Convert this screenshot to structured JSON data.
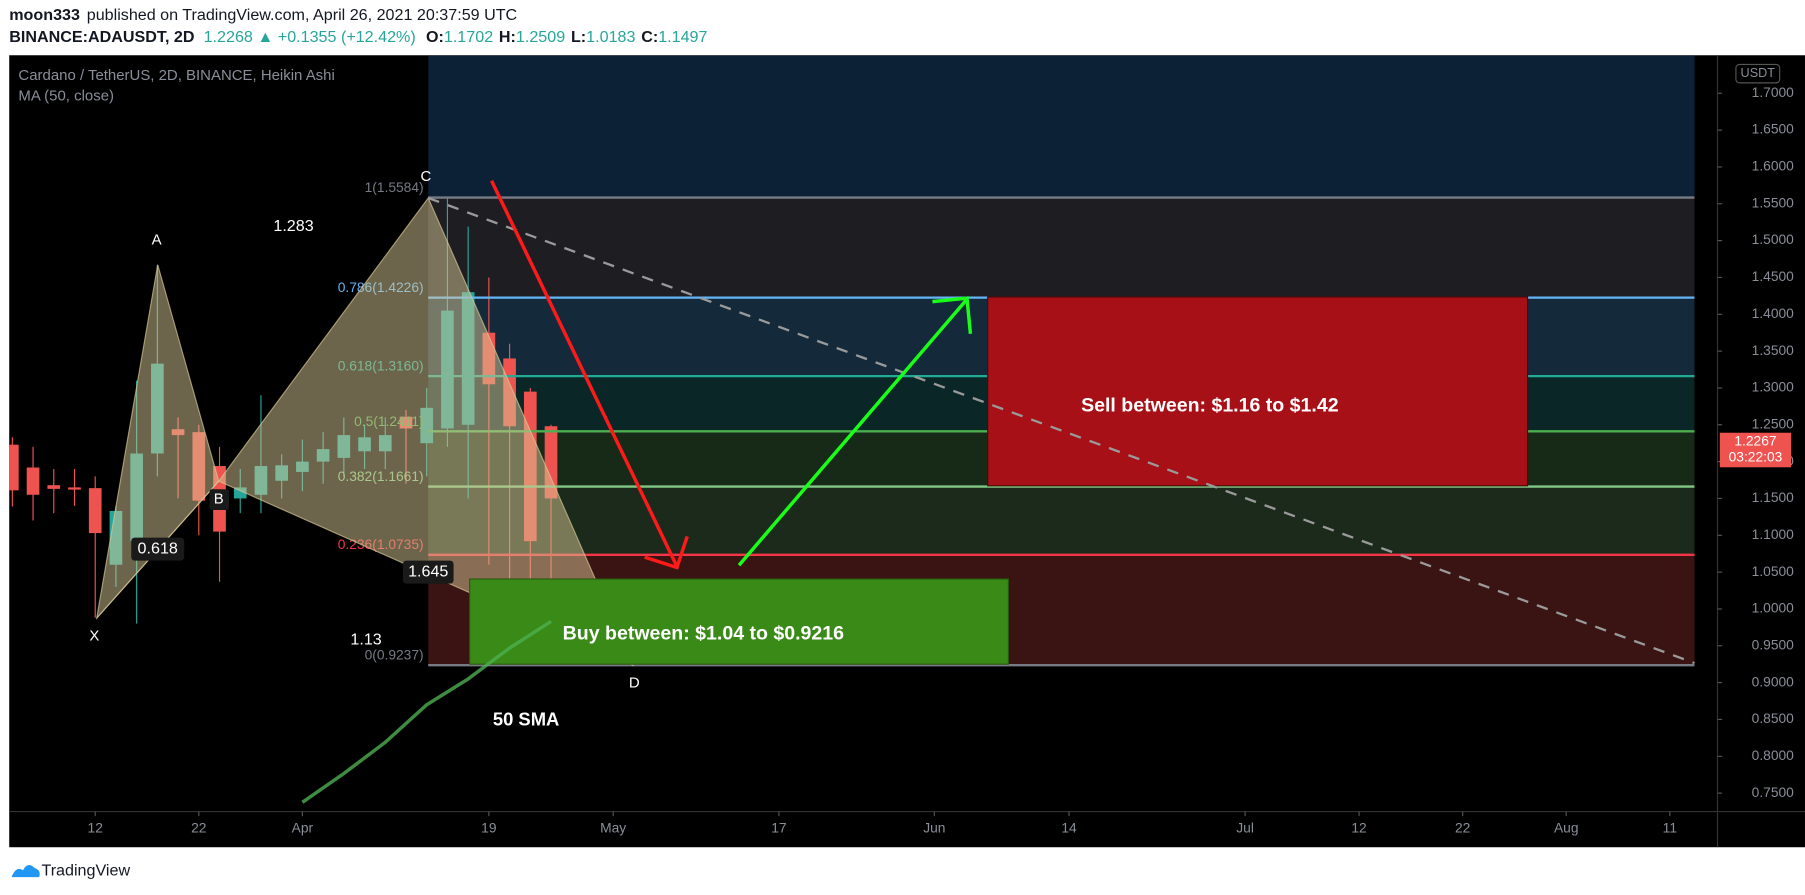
{
  "header": {
    "author": "moon333",
    "published": "published on TradingView.com, April 26, 2021 20:37:59 UTC",
    "symbol": "BINANCE:ADAUSDT, 2D",
    "last": "1.2268",
    "arrow": "▲",
    "change": "+0.1355 (+12.42%)",
    "ohlc": [
      {
        "key": "O:",
        "value": "1.1702"
      },
      {
        "key": "H:",
        "value": "1.2509"
      },
      {
        "key": "L:",
        "value": "1.0183"
      },
      {
        "key": "C:",
        "value": "1.1497"
      }
    ]
  },
  "chart_data": {
    "type": "candlestick",
    "title": "Cardano / TetherUS, 2D, BINANCE, Heikin Ashi",
    "currency": "USDT",
    "grid": false,
    "xlim": [
      62.7,
      227.6
    ],
    "ylim": [
      0.725,
      1.7516
    ],
    "xticks": [
      {
        "value": 71,
        "label": "12"
      },
      {
        "value": 81,
        "label": "22"
      },
      {
        "value": 91,
        "label": "Apr"
      },
      {
        "value": 109,
        "label": "19"
      },
      {
        "value": 121,
        "label": "May"
      },
      {
        "value": 137,
        "label": "17"
      },
      {
        "value": 152,
        "label": "Jun"
      },
      {
        "value": 165,
        "label": "14"
      },
      {
        "value": 182,
        "label": "Jul"
      },
      {
        "value": 193,
        "label": "12"
      },
      {
        "value": 203,
        "label": "22"
      },
      {
        "value": 213,
        "label": "Aug"
      },
      {
        "value": 223,
        "label": "11"
      }
    ],
    "yticks": [
      {
        "value": 0.75,
        "label": "0.7500"
      },
      {
        "value": 0.8,
        "label": "0.8000"
      },
      {
        "value": 0.85,
        "label": "0.8500"
      },
      {
        "value": 0.9,
        "label": "0.9000"
      },
      {
        "value": 0.95,
        "label": "0.9500"
      },
      {
        "value": 1.0,
        "label": "1.0000"
      },
      {
        "value": 1.05,
        "label": "1.0500"
      },
      {
        "value": 1.1,
        "label": "1.1000"
      },
      {
        "value": 1.15,
        "label": "1.1500"
      },
      {
        "value": 1.2,
        "label": "1.2000"
      },
      {
        "value": 1.25,
        "label": "1.2500"
      },
      {
        "value": 1.3,
        "label": "1.3000"
      },
      {
        "value": 1.35,
        "label": "1.3500"
      },
      {
        "value": 1.4,
        "label": "1.4000"
      },
      {
        "value": 1.45,
        "label": "1.4500"
      },
      {
        "value": 1.5,
        "label": "1.5000"
      },
      {
        "value": 1.55,
        "label": "1.5500"
      },
      {
        "value": 1.6,
        "label": "1.6000"
      },
      {
        "value": 1.65,
        "label": "1.6500"
      },
      {
        "value": 1.7,
        "label": "1.7000"
      }
    ],
    "candles": {
      "up_color": "#26a69a",
      "down_color": "#ef5350",
      "x": [
        63,
        65,
        67,
        69,
        71,
        73,
        75,
        77,
        79,
        81,
        83,
        85,
        87,
        89,
        91,
        93,
        95,
        97,
        99,
        101,
        103,
        105,
        107,
        109,
        111,
        113,
        115
      ],
      "open": [
        1.223,
        1.192,
        1.168,
        1.165,
        1.164,
        1.06,
        1.092,
        1.211,
        1.244,
        1.24,
        1.194,
        1.15,
        1.155,
        1.174,
        1.186,
        1.2,
        1.205,
        1.214,
        1.214,
        1.261,
        1.225,
        1.245,
        1.25,
        1.375,
        1.34,
        1.295,
        1.248
      ],
      "high": [
        1.233,
        1.22,
        1.19,
        1.19,
        1.18,
        1.14,
        1.31,
        1.467,
        1.26,
        1.25,
        1.22,
        1.19,
        1.29,
        1.21,
        1.23,
        1.24,
        1.26,
        1.25,
        1.26,
        1.27,
        1.3,
        1.558,
        1.519,
        1.45,
        1.36,
        1.3,
        1.25
      ],
      "low": [
        1.139,
        1.12,
        1.13,
        1.14,
        0.988,
        1.03,
        0.98,
        1.18,
        1.15,
        1.1,
        1.037,
        1.13,
        1.13,
        1.15,
        1.16,
        1.17,
        1.18,
        1.19,
        1.19,
        1.17,
        1.18,
        1.22,
        1.15,
        1.06,
        0.97,
        0.924,
        1.02
      ],
      "close": [
        1.161,
        1.155,
        1.163,
        1.162,
        1.103,
        1.133,
        1.211,
        1.333,
        1.236,
        1.147,
        1.105,
        1.165,
        1.194,
        1.195,
        1.2,
        1.217,
        1.236,
        1.233,
        1.236,
        1.245,
        1.273,
        1.405,
        1.43,
        1.305,
        1.248,
        1.092,
        1.15
      ]
    },
    "series": [
      {
        "name": "MA (50, close)",
        "color": "#4caf50",
        "x": [
          91,
          95,
          99,
          103,
          107,
          111,
          115
        ],
        "values": [
          0.7375,
          0.7766,
          0.819,
          0.87,
          0.905,
          0.947,
          0.983
        ]
      }
    ],
    "last_price": {
      "value": 1.2267,
      "countdown": "03:22:03",
      "color": "#ef5350"
    },
    "fib": {
      "top_fill": "#0c2036",
      "levels": [
        {
          "value": 1.5584,
          "label": "1(1.5584)",
          "color": "#787b86",
          "fill": "#1e1e22"
        },
        {
          "value": 1.4226,
          "label": "0.786(1.4226)",
          "color": "#64b5f6",
          "fill": "#142a3a"
        },
        {
          "value": 1.316,
          "label": "0.618(1.3160)",
          "color": "#22ab94",
          "fill": "#0b2626"
        },
        {
          "value": 1.2411,
          "label": "0.5(1.2411)",
          "color": "#4caf50",
          "fill": "#172a17"
        },
        {
          "value": 1.1661,
          "label": "0.382(1.1661)",
          "color": "#81c784",
          "fill": "#1b2a1b"
        },
        {
          "value": 1.0735,
          "label": "0.236(1.0735)",
          "color": "#f23645",
          "fill": "#3a1313"
        },
        {
          "value": 0.9237,
          "label": "0(0.9237)",
          "color": "#787b86"
        }
      ]
    },
    "pattern": {
      "points": [
        "X",
        "A",
        "B",
        "C",
        "D"
      ],
      "ratios": [
        "0.618",
        "1.283",
        "1.645",
        "1.13"
      ]
    },
    "annotations": {
      "sell": "Sell between: $1.16 to $1.42",
      "buy": "Buy between: $1.04 to $0.9216",
      "sma": "50 SMA"
    }
  },
  "footer": {
    "brand": "TradingView"
  }
}
